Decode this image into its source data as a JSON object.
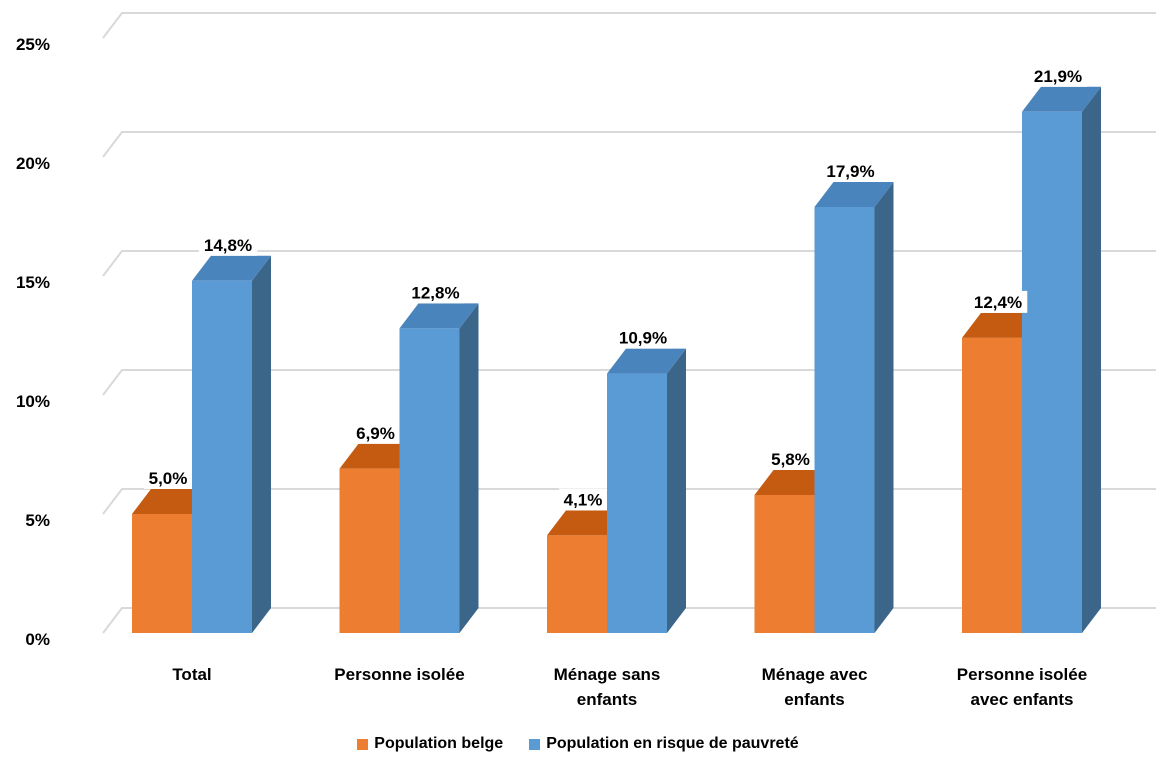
{
  "chart_data": {
    "type": "bar",
    "categories": [
      "Total",
      "Personne isolée",
      "Ménage sans enfants",
      "Ménage avec enfants",
      "Personne isolée avec enfants"
    ],
    "category_lines": [
      [
        "Total"
      ],
      [
        "Personne isolée"
      ],
      [
        "Ménage sans",
        "enfants"
      ],
      [
        "Ménage avec",
        "enfants"
      ],
      [
        "Personne isolée",
        "avec enfants"
      ]
    ],
    "series": [
      {
        "name": "Population belge",
        "values": [
          5.0,
          6.9,
          4.1,
          5.8,
          12.4
        ],
        "labels": [
          "5,0%",
          "6,9%",
          "4,1%",
          "5,8%",
          "12,4%"
        ]
      },
      {
        "name": "Population en risque de pauvreté",
        "values": [
          14.8,
          12.8,
          10.9,
          17.9,
          21.9
        ],
        "labels": [
          "14,8%",
          "12,8%",
          "10,9%",
          "17,9%",
          "21,9%"
        ]
      }
    ],
    "y_ticks": [
      "0%",
      "5%",
      "10%",
      "15%",
      "20%",
      "25%"
    ],
    "ylim": [
      0,
      25
    ],
    "grid": true,
    "legend_position": "bottom",
    "colors": {
      "series1_front": "#ED7D31",
      "series1_top": "#C55A11",
      "series1_side": "#A04A10",
      "series2_front": "#5B9BD5",
      "series2_top": "#4A84BC",
      "series2_side": "#3B6589",
      "grid": "#D9D9D9"
    }
  }
}
